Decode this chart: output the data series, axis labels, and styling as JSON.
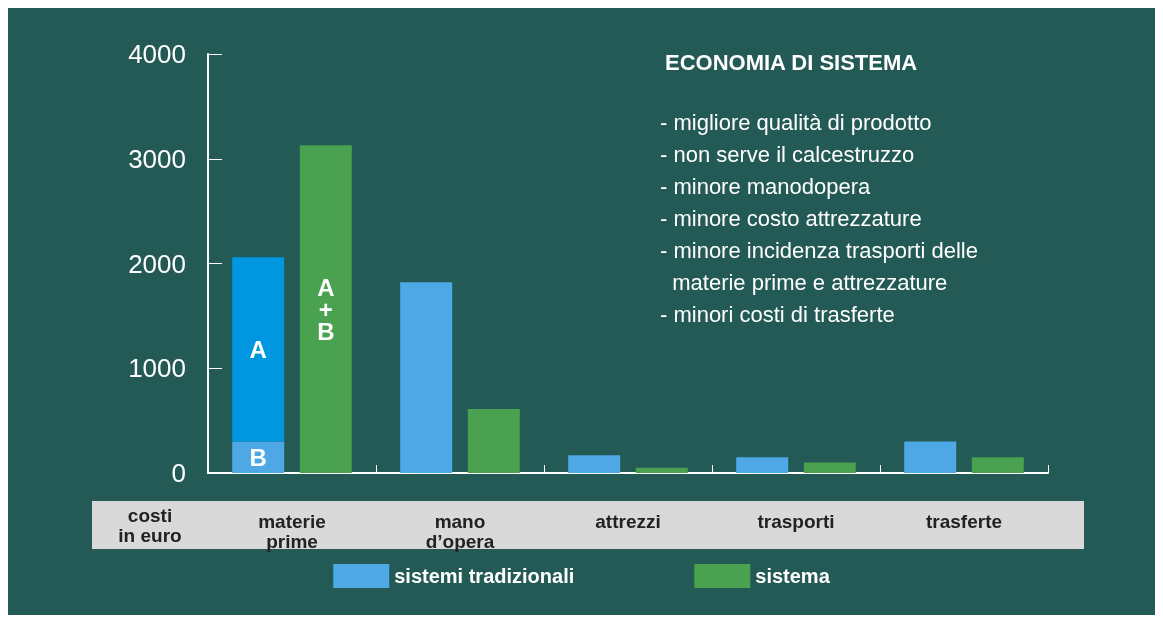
{
  "chart_data": {
    "type": "bar",
    "title": "ECONOMIA DI SISTEMA",
    "ylabel": "costi\nin euro",
    "categories": [
      "materie\nprime",
      "mano\nd’opera",
      "attrezzi",
      "trasporti",
      "trasferte"
    ],
    "series": [
      {
        "name": "sistemi tradizionali",
        "color": "#4fa8e6",
        "values": [
          300,
          1820,
          170,
          150,
          300
        ],
        "value_labels": [
          "B",
          null,
          null,
          null,
          null
        ]
      },
      {
        "color": "#0096e0",
        "values": [
          1760,
          null,
          null,
          null,
          null
        ],
        "base": [
          300,
          null,
          null,
          null,
          null
        ],
        "value_labels": [
          "A",
          null,
          null,
          null,
          null
        ]
      },
      {
        "name": "sistema",
        "color": "#4aa150",
        "values": [
          3130,
          610,
          50,
          100,
          150
        ],
        "value_labels": [
          "A\n+\nB",
          null,
          null,
          null,
          null
        ]
      }
    ],
    "ylim": [
      0,
      4000
    ],
    "yticks": [
      0,
      1000,
      2000,
      3000,
      4000
    ],
    "grid": false,
    "legend": "bottom",
    "annotations": [
      "- migliore qualità di prodotto",
      "- non serve il calcestruzzo",
      "- minore manodopera",
      "- minore costo attrezzature",
      "- minore incidenza trasporti delle\n  materie prime e attrezzature",
      "- minori costi di trasferte"
    ]
  }
}
